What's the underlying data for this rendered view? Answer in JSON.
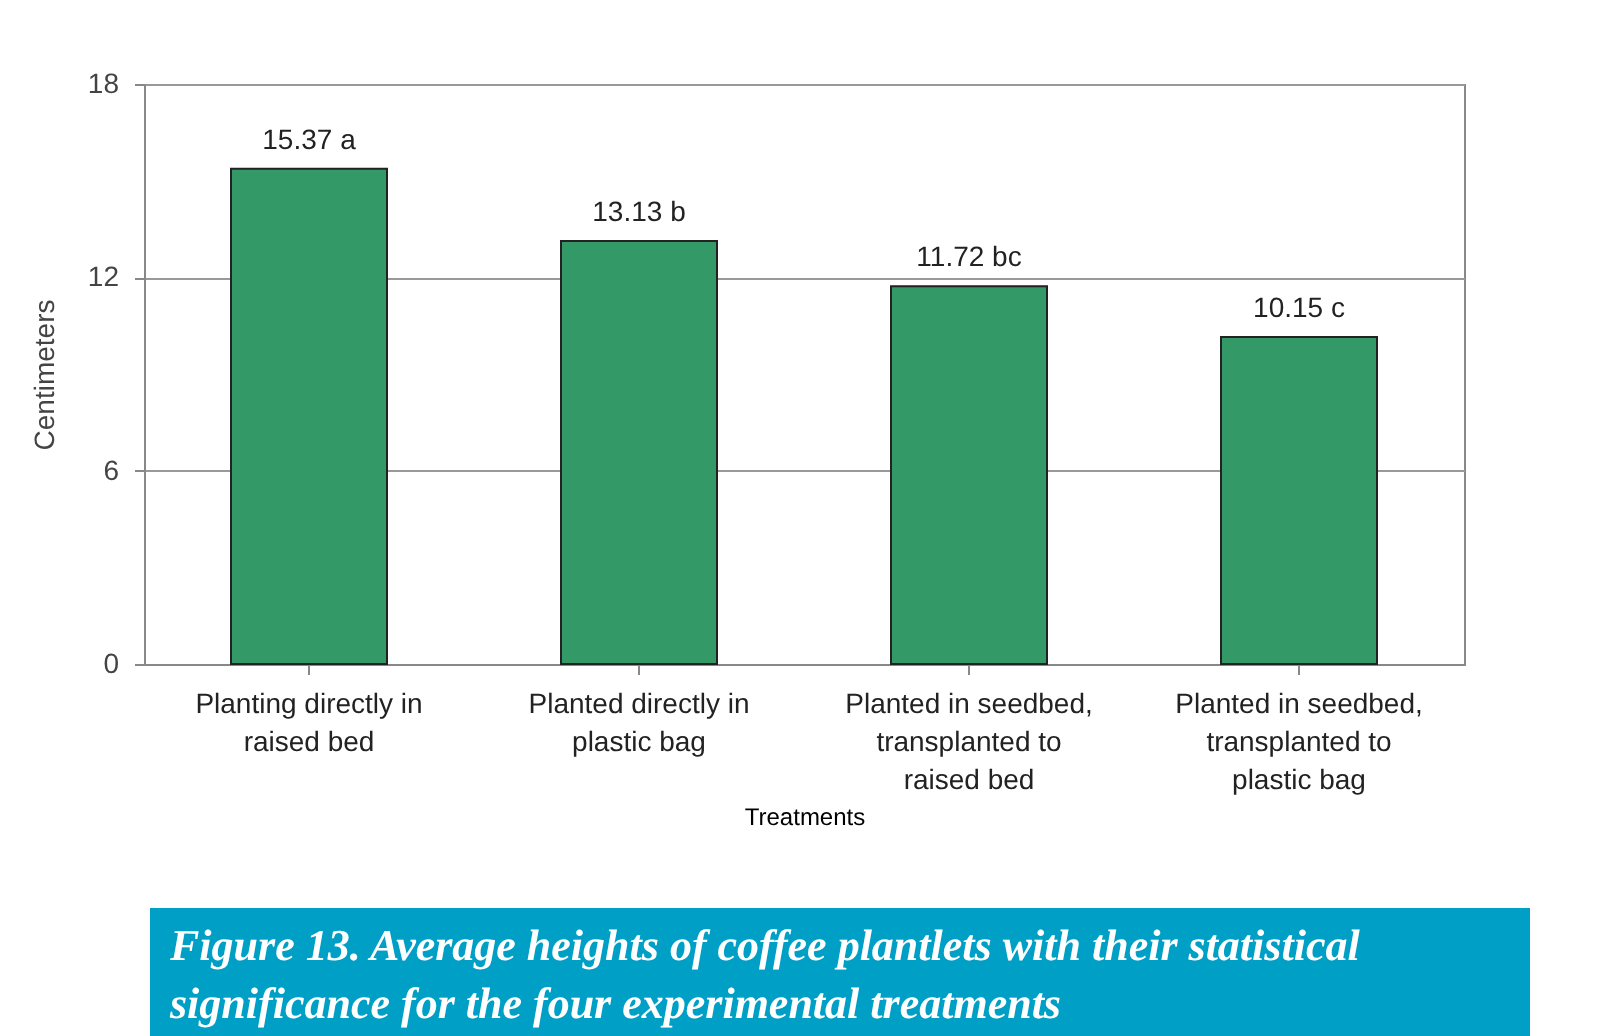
{
  "chart_data": {
    "type": "bar",
    "categories": [
      "Planting directly in\nraised bed",
      "Planted directly in\nplastic bag",
      "Planted in seedbed,\ntransplanted to\nraised bed",
      "Planted in seedbed,\ntransplanted to\nplastic bag"
    ],
    "values": [
      15.37,
      13.13,
      11.72,
      10.15
    ],
    "value_labels": [
      "15.37 a",
      "13.13 b",
      "11.72 bc",
      "10.15 c"
    ],
    "color": "#339966",
    "xlabel": "Treatments",
    "ylabel": "Centimeters",
    "ylim": [
      0,
      18
    ],
    "yticks": [
      0,
      6,
      12,
      18
    ],
    "grid": "y",
    "annotations": [
      "Figure 13.  Average heights of coffee plantlets with their statistical significance for the four experimental treatments"
    ]
  }
}
